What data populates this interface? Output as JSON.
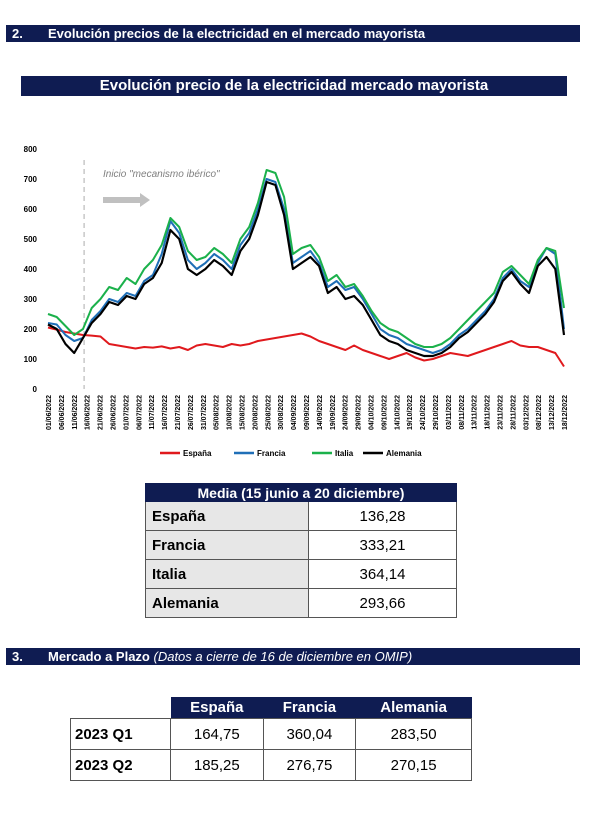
{
  "section2": {
    "number": "2.",
    "title": "Evolución precios de la electricidad en el mercado mayorista"
  },
  "chart_title": "Evolución precio de la electricidad mercado mayorista",
  "chart_data": {
    "type": "line",
    "title": "Evolución precio de la electricidad mercado mayorista",
    "xlabel": "",
    "ylabel": "",
    "ylim": [
      0,
      800
    ],
    "yticks": [
      0,
      100,
      200,
      300,
      400,
      500,
      600,
      700,
      800
    ],
    "annotation": "Inicio \"mecanismo ibérico\"",
    "annotation_date": "15/06/2022",
    "x_ticks": [
      "01/06/2022",
      "06/06/2022",
      "11/06/2022",
      "16/06/2022",
      "21/06/2022",
      "26/06/2022",
      "01/07/2022",
      "06/07/2022",
      "11/07/2022",
      "16/07/2022",
      "21/07/2022",
      "26/07/2022",
      "31/07/2022",
      "05/08/2022",
      "10/08/2022",
      "15/08/2022",
      "20/08/2022",
      "25/08/2022",
      "30/08/2022",
      "04/09/2022",
      "09/09/2022",
      "14/09/2022",
      "19/09/2022",
      "24/09/2022",
      "29/09/2022",
      "04/10/2022",
      "09/10/2022",
      "14/10/2022",
      "19/10/2022",
      "24/10/2022",
      "29/10/2022",
      "03/11/2022",
      "08/11/2022",
      "13/11/2022",
      "18/11/2022",
      "23/11/2022",
      "28/11/2022",
      "03/12/2022",
      "08/12/2022",
      "13/12/2022",
      "18/12/2022"
    ],
    "series": [
      {
        "name": "España",
        "color": "#e0191d",
        "values": [
          205,
          198,
          190,
          185,
          180,
          178,
          175,
          150,
          145,
          140,
          135,
          140,
          138,
          142,
          135,
          140,
          130,
          145,
          150,
          145,
          140,
          150,
          145,
          150,
          160,
          165,
          170,
          175,
          180,
          185,
          175,
          160,
          150,
          140,
          130,
          145,
          130,
          120,
          110,
          100,
          110,
          120,
          105,
          95,
          100,
          110,
          120,
          115,
          110,
          120,
          130,
          140,
          150,
          160,
          145,
          140,
          140,
          130,
          120,
          75
        ]
      },
      {
        "name": "Francia",
        "color": "#1f6fb7",
        "values": [
          220,
          215,
          180,
          160,
          170,
          230,
          260,
          300,
          290,
          320,
          310,
          360,
          380,
          450,
          560,
          520,
          430,
          400,
          420,
          450,
          430,
          400,
          480,
          520,
          600,
          700,
          690,
          600,
          420,
          440,
          460,
          420,
          340,
          360,
          330,
          340,
          300,
          250,
          200,
          180,
          170,
          150,
          140,
          130,
          120,
          130,
          150,
          180,
          200,
          230,
          260,
          300,
          370,
          400,
          360,
          340,
          420,
          470,
          450,
          200
        ]
      },
      {
        "name": "Italia",
        "color": "#1bb14b",
        "values": [
          250,
          240,
          210,
          180,
          200,
          270,
          300,
          340,
          330,
          370,
          350,
          400,
          430,
          480,
          570,
          540,
          460,
          430,
          440,
          470,
          450,
          420,
          500,
          540,
          620,
          730,
          720,
          640,
          450,
          470,
          480,
          440,
          360,
          380,
          340,
          350,
          310,
          260,
          220,
          200,
          190,
          170,
          150,
          140,
          140,
          150,
          170,
          200,
          230,
          260,
          290,
          320,
          390,
          410,
          380,
          350,
          430,
          470,
          460,
          270
        ]
      },
      {
        "name": "Alemania",
        "color": "#000000",
        "values": [
          215,
          200,
          150,
          120,
          170,
          220,
          250,
          290,
          280,
          310,
          300,
          350,
          370,
          420,
          530,
          500,
          400,
          380,
          400,
          430,
          410,
          380,
          460,
          500,
          580,
          690,
          680,
          580,
          400,
          420,
          440,
          410,
          320,
          340,
          300,
          310,
          280,
          230,
          180,
          160,
          150,
          130,
          120,
          110,
          110,
          120,
          140,
          170,
          190,
          220,
          250,
          290,
          360,
          390,
          350,
          320,
          410,
          440,
          400,
          180
        ]
      }
    ]
  },
  "media_table": {
    "header": "Media (15 junio a 20 diciembre)",
    "rows": [
      {
        "label": "España",
        "value": "136,28"
      },
      {
        "label": "Francia",
        "value": "333,21"
      },
      {
        "label": "Italia",
        "value": "364,14"
      },
      {
        "label": "Alemania",
        "value": "293,66"
      }
    ]
  },
  "section3": {
    "number": "3.",
    "title": "Mercado a Plazo",
    "note": "(Datos a cierre de 16 de diciembre en OMIP)"
  },
  "plazo_table": {
    "columns": [
      "España",
      "Francia",
      "Alemania"
    ],
    "rows": [
      {
        "label": "2023 Q1",
        "values": [
          "164,75",
          "360,04",
          "283,50"
        ]
      },
      {
        "label": "2023 Q2",
        "values": [
          "185,25",
          "276,75",
          "270,15"
        ]
      }
    ]
  }
}
